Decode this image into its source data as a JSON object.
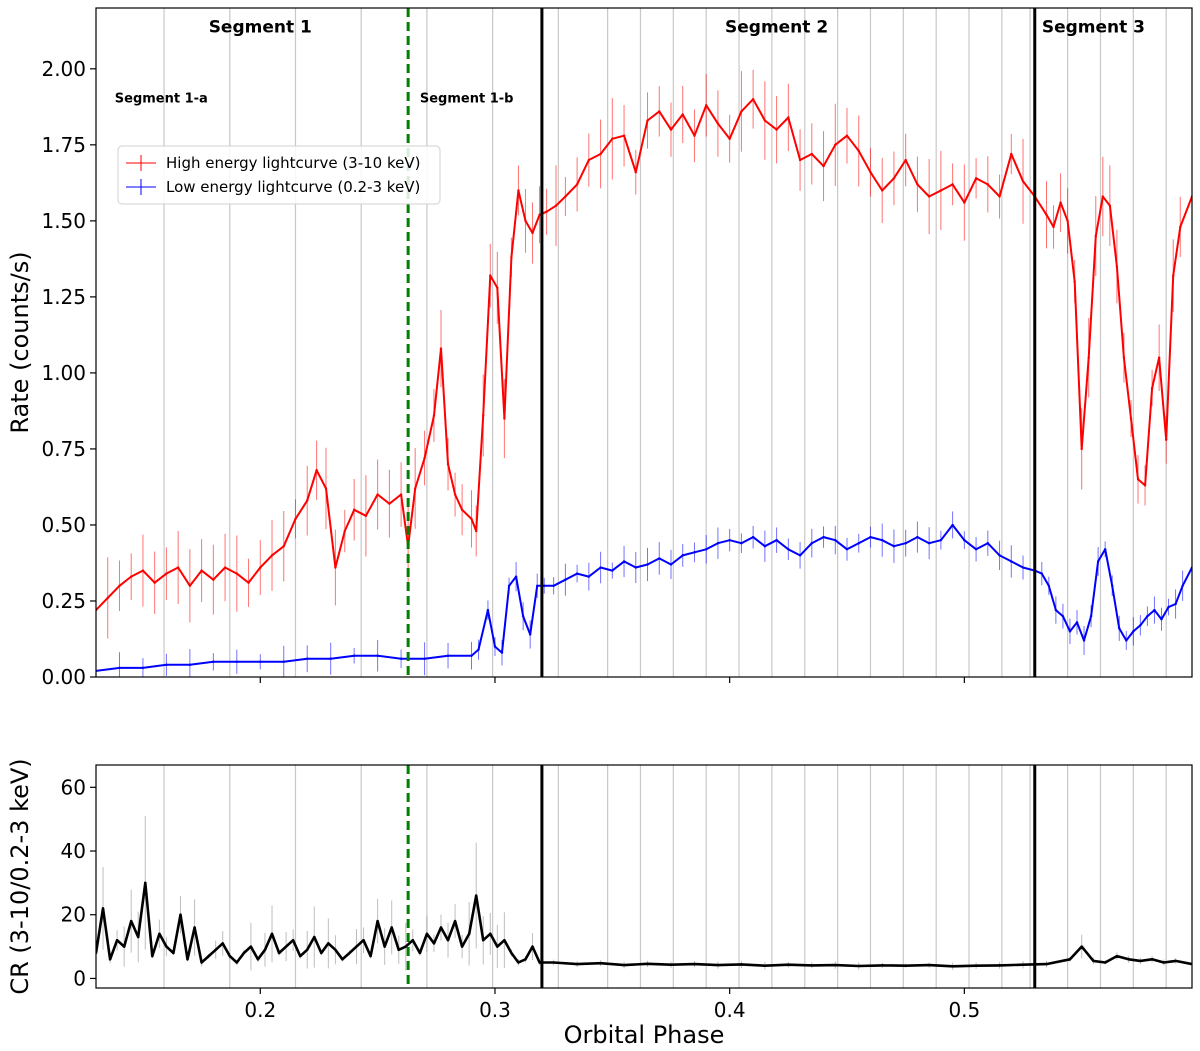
{
  "chart_data": [
    {
      "type": "line",
      "panel": "top",
      "ylabel": "Rate (counts/s)",
      "xlim": [
        0.13,
        0.597
      ],
      "ylim": [
        0,
        2.2
      ],
      "yticks": [
        0.0,
        0.25,
        0.5,
        0.75,
        1.0,
        1.25,
        1.5,
        1.75,
        2.0
      ],
      "ytick_labels": [
        "0.00",
        "0.25",
        "0.50",
        "0.75",
        "1.00",
        "1.25",
        "1.50",
        "1.75",
        "2.00"
      ],
      "grid": "vertical",
      "legend_position": "upper-left",
      "series": [
        {
          "name": "High energy lightcurve (3-10 keV)",
          "color": "#ff0000",
          "x": [
            0.13,
            0.135,
            0.14,
            0.145,
            0.15,
            0.155,
            0.16,
            0.165,
            0.17,
            0.175,
            0.18,
            0.185,
            0.19,
            0.195,
            0.2,
            0.205,
            0.21,
            0.215,
            0.22,
            0.224,
            0.228,
            0.232,
            0.236,
            0.24,
            0.245,
            0.25,
            0.255,
            0.26,
            0.263,
            0.266,
            0.27,
            0.274,
            0.277,
            0.28,
            0.283,
            0.286,
            0.29,
            0.292,
            0.295,
            0.298,
            0.301,
            0.304,
            0.307,
            0.31,
            0.313,
            0.316,
            0.319,
            0.322,
            0.326,
            0.33,
            0.335,
            0.34,
            0.345,
            0.35,
            0.355,
            0.36,
            0.365,
            0.37,
            0.375,
            0.38,
            0.385,
            0.39,
            0.395,
            0.4,
            0.405,
            0.41,
            0.415,
            0.42,
            0.425,
            0.43,
            0.435,
            0.44,
            0.445,
            0.45,
            0.455,
            0.46,
            0.465,
            0.47,
            0.475,
            0.48,
            0.485,
            0.49,
            0.495,
            0.5,
            0.505,
            0.51,
            0.515,
            0.52,
            0.525,
            0.53,
            0.535,
            0.538,
            0.541,
            0.544,
            0.547,
            0.55,
            0.553,
            0.556,
            0.559,
            0.562,
            0.565,
            0.568,
            0.571,
            0.574,
            0.577,
            0.58,
            0.583,
            0.586,
            0.589,
            0.592,
            0.597
          ],
          "y": [
            0.22,
            0.26,
            0.3,
            0.33,
            0.35,
            0.31,
            0.34,
            0.36,
            0.3,
            0.35,
            0.32,
            0.36,
            0.34,
            0.31,
            0.36,
            0.4,
            0.43,
            0.52,
            0.58,
            0.68,
            0.62,
            0.36,
            0.48,
            0.55,
            0.53,
            0.6,
            0.57,
            0.6,
            0.43,
            0.62,
            0.72,
            0.86,
            1.08,
            0.7,
            0.6,
            0.55,
            0.52,
            0.48,
            0.86,
            1.32,
            1.28,
            0.85,
            1.38,
            1.6,
            1.5,
            1.46,
            1.52,
            1.53,
            1.55,
            1.58,
            1.62,
            1.7,
            1.72,
            1.77,
            1.78,
            1.66,
            1.83,
            1.86,
            1.8,
            1.85,
            1.78,
            1.88,
            1.82,
            1.77,
            1.86,
            1.9,
            1.83,
            1.8,
            1.84,
            1.7,
            1.72,
            1.68,
            1.75,
            1.78,
            1.73,
            1.66,
            1.6,
            1.64,
            1.7,
            1.62,
            1.58,
            1.6,
            1.62,
            1.56,
            1.64,
            1.62,
            1.58,
            1.72,
            1.63,
            1.58,
            1.52,
            1.48,
            1.56,
            1.5,
            1.3,
            0.75,
            1.05,
            1.45,
            1.58,
            1.55,
            1.35,
            1.05,
            0.85,
            0.65,
            0.63,
            0.95,
            1.05,
            0.78,
            1.32,
            1.48,
            1.58
          ]
        },
        {
          "name": "Low energy lightcurve (0.2-3 keV)",
          "color": "#0000ff",
          "x": [
            0.13,
            0.14,
            0.15,
            0.16,
            0.17,
            0.18,
            0.19,
            0.2,
            0.21,
            0.22,
            0.23,
            0.24,
            0.25,
            0.26,
            0.27,
            0.28,
            0.29,
            0.293,
            0.297,
            0.3,
            0.303,
            0.306,
            0.309,
            0.312,
            0.315,
            0.318,
            0.321,
            0.325,
            0.33,
            0.335,
            0.34,
            0.345,
            0.35,
            0.355,
            0.36,
            0.365,
            0.37,
            0.375,
            0.38,
            0.385,
            0.39,
            0.395,
            0.4,
            0.405,
            0.41,
            0.415,
            0.42,
            0.425,
            0.43,
            0.435,
            0.44,
            0.445,
            0.45,
            0.455,
            0.46,
            0.465,
            0.47,
            0.475,
            0.48,
            0.485,
            0.49,
            0.495,
            0.5,
            0.505,
            0.51,
            0.515,
            0.52,
            0.525,
            0.53,
            0.533,
            0.536,
            0.539,
            0.542,
            0.545,
            0.548,
            0.551,
            0.554,
            0.557,
            0.56,
            0.563,
            0.566,
            0.569,
            0.572,
            0.575,
            0.578,
            0.581,
            0.584,
            0.587,
            0.59,
            0.593,
            0.597
          ],
          "y": [
            0.02,
            0.03,
            0.03,
            0.04,
            0.04,
            0.05,
            0.05,
            0.05,
            0.05,
            0.06,
            0.06,
            0.07,
            0.07,
            0.06,
            0.06,
            0.07,
            0.07,
            0.09,
            0.22,
            0.1,
            0.08,
            0.3,
            0.33,
            0.2,
            0.14,
            0.3,
            0.3,
            0.3,
            0.32,
            0.34,
            0.33,
            0.36,
            0.35,
            0.38,
            0.36,
            0.37,
            0.39,
            0.37,
            0.4,
            0.41,
            0.42,
            0.44,
            0.45,
            0.44,
            0.46,
            0.43,
            0.45,
            0.42,
            0.4,
            0.44,
            0.46,
            0.45,
            0.42,
            0.44,
            0.46,
            0.45,
            0.43,
            0.44,
            0.46,
            0.44,
            0.45,
            0.5,
            0.45,
            0.42,
            0.44,
            0.4,
            0.38,
            0.36,
            0.35,
            0.34,
            0.3,
            0.22,
            0.2,
            0.15,
            0.18,
            0.12,
            0.2,
            0.38,
            0.42,
            0.3,
            0.16,
            0.12,
            0.15,
            0.17,
            0.2,
            0.22,
            0.19,
            0.23,
            0.24,
            0.3,
            0.36
          ]
        }
      ],
      "vlines": [
        {
          "x": 0.263,
          "style": "dashed",
          "color": "#008000"
        },
        {
          "x": 0.32,
          "style": "solid",
          "color": "#000000"
        },
        {
          "x": 0.53,
          "style": "solid",
          "color": "#000000"
        }
      ],
      "gridlines_x": [
        0.159,
        0.187,
        0.215,
        0.243,
        0.271,
        0.299,
        0.327,
        0.348,
        0.362,
        0.376,
        0.39,
        0.404,
        0.418,
        0.432,
        0.446,
        0.46,
        0.474,
        0.488,
        0.502,
        0.516,
        0.528,
        0.544,
        0.558,
        0.572,
        0.586
      ],
      "annotations": [
        {
          "text": "Segment 1",
          "x": 0.2,
          "y": 2.12,
          "size": "large"
        },
        {
          "text": "Segment 2",
          "x": 0.42,
          "y": 2.12,
          "size": "large"
        },
        {
          "text": "Segment 3",
          "x": 0.555,
          "y": 2.12,
          "size": "large"
        },
        {
          "text": "Segment 1-a",
          "x": 0.138,
          "y": 1.89,
          "size": "small"
        },
        {
          "text": "Segment 1-b",
          "x": 0.268,
          "y": 1.89,
          "size": "small"
        }
      ]
    },
    {
      "type": "line",
      "panel": "bottom",
      "xlabel": "Orbital Phase",
      "ylabel": "CR (3-10/0.2-3 keV)",
      "xlim": [
        0.13,
        0.597
      ],
      "ylim": [
        -3,
        67
      ],
      "xticks": [
        0.2,
        0.3,
        0.4,
        0.5
      ],
      "xtick_labels": [
        "0.2",
        "0.3",
        "0.4",
        "0.5"
      ],
      "yticks": [
        0,
        20,
        40,
        60
      ],
      "ytick_labels": [
        "0",
        "20",
        "40",
        "60"
      ],
      "grid": "vertical",
      "series": [
        {
          "color": "#000000",
          "x": [
            0.13,
            0.133,
            0.136,
            0.139,
            0.142,
            0.145,
            0.148,
            0.151,
            0.154,
            0.157,
            0.16,
            0.163,
            0.166,
            0.169,
            0.172,
            0.175,
            0.178,
            0.181,
            0.184,
            0.187,
            0.19,
            0.193,
            0.196,
            0.199,
            0.202,
            0.205,
            0.208,
            0.211,
            0.214,
            0.217,
            0.22,
            0.223,
            0.226,
            0.229,
            0.232,
            0.235,
            0.238,
            0.241,
            0.244,
            0.247,
            0.25,
            0.253,
            0.256,
            0.259,
            0.262,
            0.265,
            0.268,
            0.271,
            0.274,
            0.277,
            0.28,
            0.283,
            0.286,
            0.289,
            0.292,
            0.295,
            0.298,
            0.301,
            0.304,
            0.307,
            0.31,
            0.313,
            0.316,
            0.319,
            0.325,
            0.335,
            0.345,
            0.355,
            0.365,
            0.375,
            0.385,
            0.395,
            0.405,
            0.415,
            0.425,
            0.435,
            0.445,
            0.455,
            0.465,
            0.475,
            0.485,
            0.495,
            0.505,
            0.515,
            0.525,
            0.535,
            0.545,
            0.55,
            0.555,
            0.56,
            0.565,
            0.57,
            0.575,
            0.58,
            0.585,
            0.59,
            0.597
          ],
          "y": [
            8,
            22,
            6,
            12,
            10,
            18,
            13,
            30,
            7,
            14,
            10,
            8,
            20,
            6,
            16,
            5,
            7,
            9,
            11,
            7,
            5,
            8,
            10,
            6,
            9,
            14,
            8,
            10,
            12,
            7,
            9,
            13,
            8,
            11,
            9,
            6,
            8,
            10,
            12,
            7,
            18,
            10,
            16,
            9,
            10,
            12,
            8,
            14,
            11,
            16,
            12,
            18,
            10,
            14,
            26,
            12,
            14,
            10,
            12,
            8,
            5,
            6,
            10,
            5,
            5,
            4.5,
            4.8,
            4.2,
            4.6,
            4.3,
            4.5,
            4.2,
            4.4,
            4.0,
            4.3,
            4.1,
            4.2,
            3.9,
            4.1,
            4.0,
            4.2,
            3.8,
            4.0,
            4.1,
            4.3,
            4.5,
            6,
            10,
            5.5,
            5,
            7,
            6,
            5.5,
            6,
            5,
            5.5,
            4.5
          ]
        }
      ],
      "vlines": [
        {
          "x": 0.263,
          "style": "dashed",
          "color": "#008000"
        },
        {
          "x": 0.32,
          "style": "solid",
          "color": "#000000"
        },
        {
          "x": 0.53,
          "style": "solid",
          "color": "#000000"
        }
      ],
      "gridlines_x": [
        0.159,
        0.187,
        0.215,
        0.243,
        0.271,
        0.299,
        0.327,
        0.348,
        0.362,
        0.376,
        0.39,
        0.404,
        0.418,
        0.432,
        0.446,
        0.46,
        0.474,
        0.488,
        0.502,
        0.516,
        0.528,
        0.544,
        0.558,
        0.572,
        0.586
      ]
    }
  ]
}
